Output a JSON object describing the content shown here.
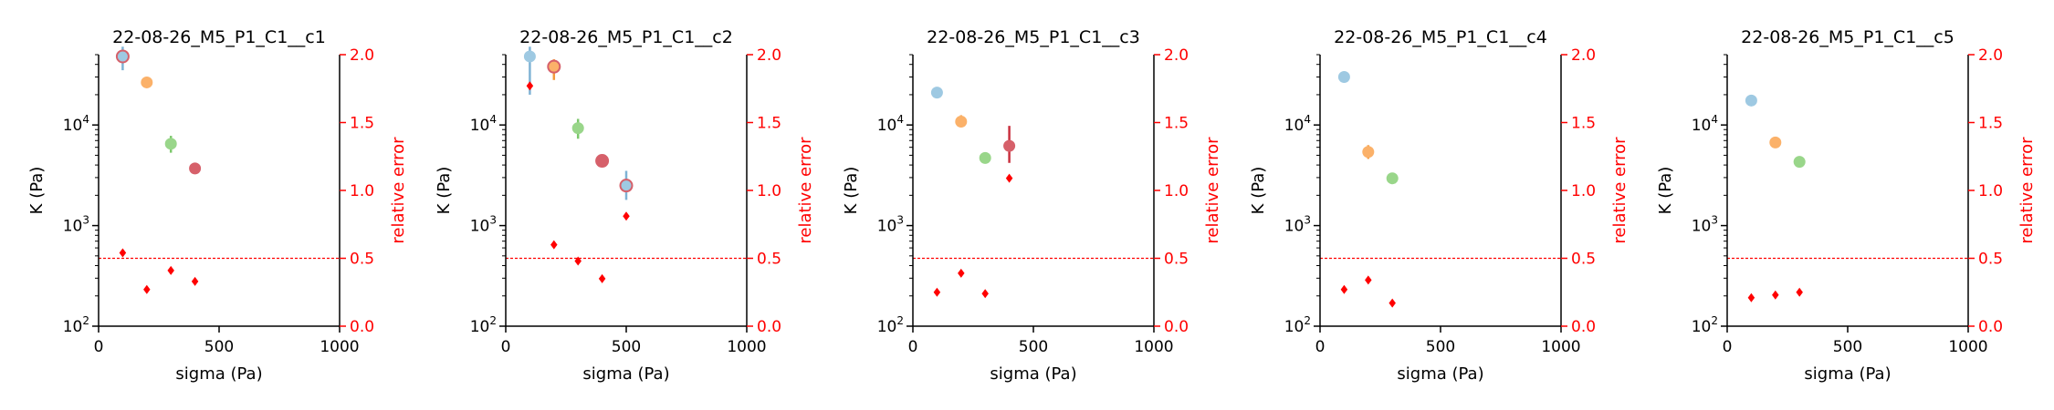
{
  "chart_data": [
    {
      "type": "scatter",
      "title": "22-08-26_M5_P1_C1__c1",
      "xlabel": "sigma (Pa)",
      "ylabel": "K (Pa)",
      "y2label": "relative error",
      "xlim": [
        0,
        1000
      ],
      "ylim": [
        100,
        50000
      ],
      "yscale": "log",
      "y2lim": [
        0,
        2.0
      ],
      "xticks": [
        "0",
        "500",
        "1000"
      ],
      "yticks": [
        {
          "base": "10",
          "exp": "2"
        },
        {
          "base": "10",
          "exp": "3"
        },
        {
          "base": "10",
          "exp": "4"
        }
      ],
      "y2ticks": [
        "0.0",
        "0.5",
        "1.0",
        "1.5",
        "2.0"
      ],
      "threshold": 0.5,
      "K": [
        {
          "x": 100,
          "y": 48000,
          "lo": 35000,
          "hi": 60000,
          "hollow": true
        },
        {
          "x": 200,
          "y": 26500,
          "lo": 24500,
          "hi": 28500,
          "hollow": false
        },
        {
          "x": 300,
          "y": 6500,
          "lo": 5300,
          "hi": 7800,
          "hollow": false
        },
        {
          "x": 400,
          "y": 3700,
          "lo": 3300,
          "hi": 4200,
          "hollow": false
        }
      ],
      "relative_error": [
        {
          "x": 100,
          "y": 0.54
        },
        {
          "x": 200,
          "y": 0.27
        },
        {
          "x": 300,
          "y": 0.41
        },
        {
          "x": 400,
          "y": 0.33
        }
      ]
    },
    {
      "type": "scatter",
      "title": "22-08-26_M5_P1_C1__c2",
      "xlabel": "sigma (Pa)",
      "ylabel": "K (Pa)",
      "y2label": "relative error",
      "xlim": [
        0,
        1000
      ],
      "ylim": [
        100,
        50000
      ],
      "yscale": "log",
      "y2lim": [
        0,
        2.0
      ],
      "xticks": [
        "0",
        "500",
        "1000"
      ],
      "yticks": [
        {
          "base": "10",
          "exp": "2"
        },
        {
          "base": "10",
          "exp": "3"
        },
        {
          "base": "10",
          "exp": "4"
        }
      ],
      "y2ticks": [
        "0.0",
        "0.5",
        "1.0",
        "1.5",
        "2.0"
      ],
      "threshold": 0.5,
      "K": [
        {
          "x": 100,
          "y": 48000,
          "lo": 20000,
          "hi": 60000,
          "hollow": false
        },
        {
          "x": 200,
          "y": 38000,
          "lo": 28000,
          "hi": 45000,
          "hollow": true
        },
        {
          "x": 300,
          "y": 9300,
          "lo": 7300,
          "hi": 11500,
          "hollow": false
        },
        {
          "x": 400,
          "y": 4400,
          "lo": 3800,
          "hi": 5000,
          "hollow": true
        },
        {
          "x": 500,
          "y": 2500,
          "lo": 1800,
          "hi": 3500,
          "hollow": true
        }
      ],
      "relative_error": [
        {
          "x": 100,
          "y": 1.77
        },
        {
          "x": 200,
          "y": 0.6
        },
        {
          "x": 300,
          "y": 0.48
        },
        {
          "x": 400,
          "y": 0.35
        },
        {
          "x": 500,
          "y": 0.81
        }
      ]
    },
    {
      "type": "scatter",
      "title": "22-08-26_M5_P1_C1__c3",
      "xlabel": "sigma (Pa)",
      "ylabel": "K (Pa)",
      "y2label": "relative error",
      "xlim": [
        0,
        1000
      ],
      "ylim": [
        100,
        50000
      ],
      "yscale": "log",
      "y2lim": [
        0,
        2.0
      ],
      "xticks": [
        "0",
        "500",
        "1000"
      ],
      "yticks": [
        {
          "base": "10",
          "exp": "2"
        },
        {
          "base": "10",
          "exp": "3"
        },
        {
          "base": "10",
          "exp": "4"
        }
      ],
      "y2ticks": [
        "0.0",
        "0.5",
        "1.0",
        "1.5",
        "2.0"
      ],
      "threshold": 0.5,
      "K": [
        {
          "x": 100,
          "y": 21000,
          "lo": 20000,
          "hi": 22000,
          "hollow": false
        },
        {
          "x": 200,
          "y": 10800,
          "lo": 9500,
          "hi": 12500,
          "hollow": false
        },
        {
          "x": 300,
          "y": 4700,
          "lo": 4500,
          "hi": 4900,
          "hollow": false
        },
        {
          "x": 400,
          "y": 6200,
          "lo": 4200,
          "hi": 9800,
          "hollow": false
        }
      ],
      "relative_error": [
        {
          "x": 100,
          "y": 0.25
        },
        {
          "x": 200,
          "y": 0.39
        },
        {
          "x": 300,
          "y": 0.24
        },
        {
          "x": 400,
          "y": 1.09
        }
      ]
    },
    {
      "type": "scatter",
      "title": "22-08-26_M5_P1_C1__c4",
      "xlabel": "sigma (Pa)",
      "ylabel": "K (Pa)",
      "y2label": "relative error",
      "xlim": [
        0,
        1000
      ],
      "ylim": [
        100,
        50000
      ],
      "yscale": "log",
      "y2lim": [
        0,
        2.0
      ],
      "xticks": [
        "0",
        "500",
        "1000"
      ],
      "yticks": [
        {
          "base": "10",
          "exp": "2"
        },
        {
          "base": "10",
          "exp": "3"
        },
        {
          "base": "10",
          "exp": "4"
        }
      ],
      "y2ticks": [
        "0.0",
        "0.5",
        "1.0",
        "1.5",
        "2.0"
      ],
      "threshold": 0.5,
      "K": [
        {
          "x": 100,
          "y": 30000,
          "lo": 28500,
          "hi": 31500,
          "hollow": false
        },
        {
          "x": 200,
          "y": 5400,
          "lo": 4600,
          "hi": 6300,
          "hollow": false
        },
        {
          "x": 300,
          "y": 2950,
          "lo": 2800,
          "hi": 3100,
          "hollow": false
        }
      ],
      "relative_error": [
        {
          "x": 100,
          "y": 0.27
        },
        {
          "x": 200,
          "y": 0.34
        },
        {
          "x": 300,
          "y": 0.17
        }
      ]
    },
    {
      "type": "scatter",
      "title": "22-08-26_M5_P1_C1__c5",
      "xlabel": "sigma (Pa)",
      "ylabel": "K (Pa)",
      "y2label": "relative error",
      "xlim": [
        0,
        1000
      ],
      "ylim": [
        100,
        50000
      ],
      "yscale": "log",
      "y2lim": [
        0,
        2.0
      ],
      "xticks": [
        "0",
        "500",
        "1000"
      ],
      "yticks": [
        {
          "base": "10",
          "exp": "2"
        },
        {
          "base": "10",
          "exp": "3"
        },
        {
          "base": "10",
          "exp": "4"
        }
      ],
      "y2ticks": [
        "0.0",
        "0.5",
        "1.0",
        "1.5",
        "2.0"
      ],
      "threshold": 0.5,
      "K": [
        {
          "x": 100,
          "y": 17500,
          "lo": 16800,
          "hi": 18300,
          "hollow": false
        },
        {
          "x": 200,
          "y": 6700,
          "lo": 6300,
          "hi": 7100,
          "hollow": false
        },
        {
          "x": 300,
          "y": 4300,
          "lo": 4100,
          "hi": 4500,
          "hollow": false
        }
      ],
      "relative_error": [
        {
          "x": 100,
          "y": 0.21
        },
        {
          "x": 200,
          "y": 0.23
        },
        {
          "x": 300,
          "y": 0.25
        }
      ]
    }
  ],
  "colors": {
    "point_palette": [
      "#9ec9e2",
      "#fbb169",
      "#99d68a",
      "#d6606a"
    ],
    "errorbar_palette": [
      "#7fb3d5",
      "#f39a3c",
      "#7cc86b",
      "#c9303e"
    ],
    "hollow_edge": "#d6606a",
    "relative_error": "#ff0000",
    "threshold_line": "#ff0000",
    "axis": "#000000"
  }
}
